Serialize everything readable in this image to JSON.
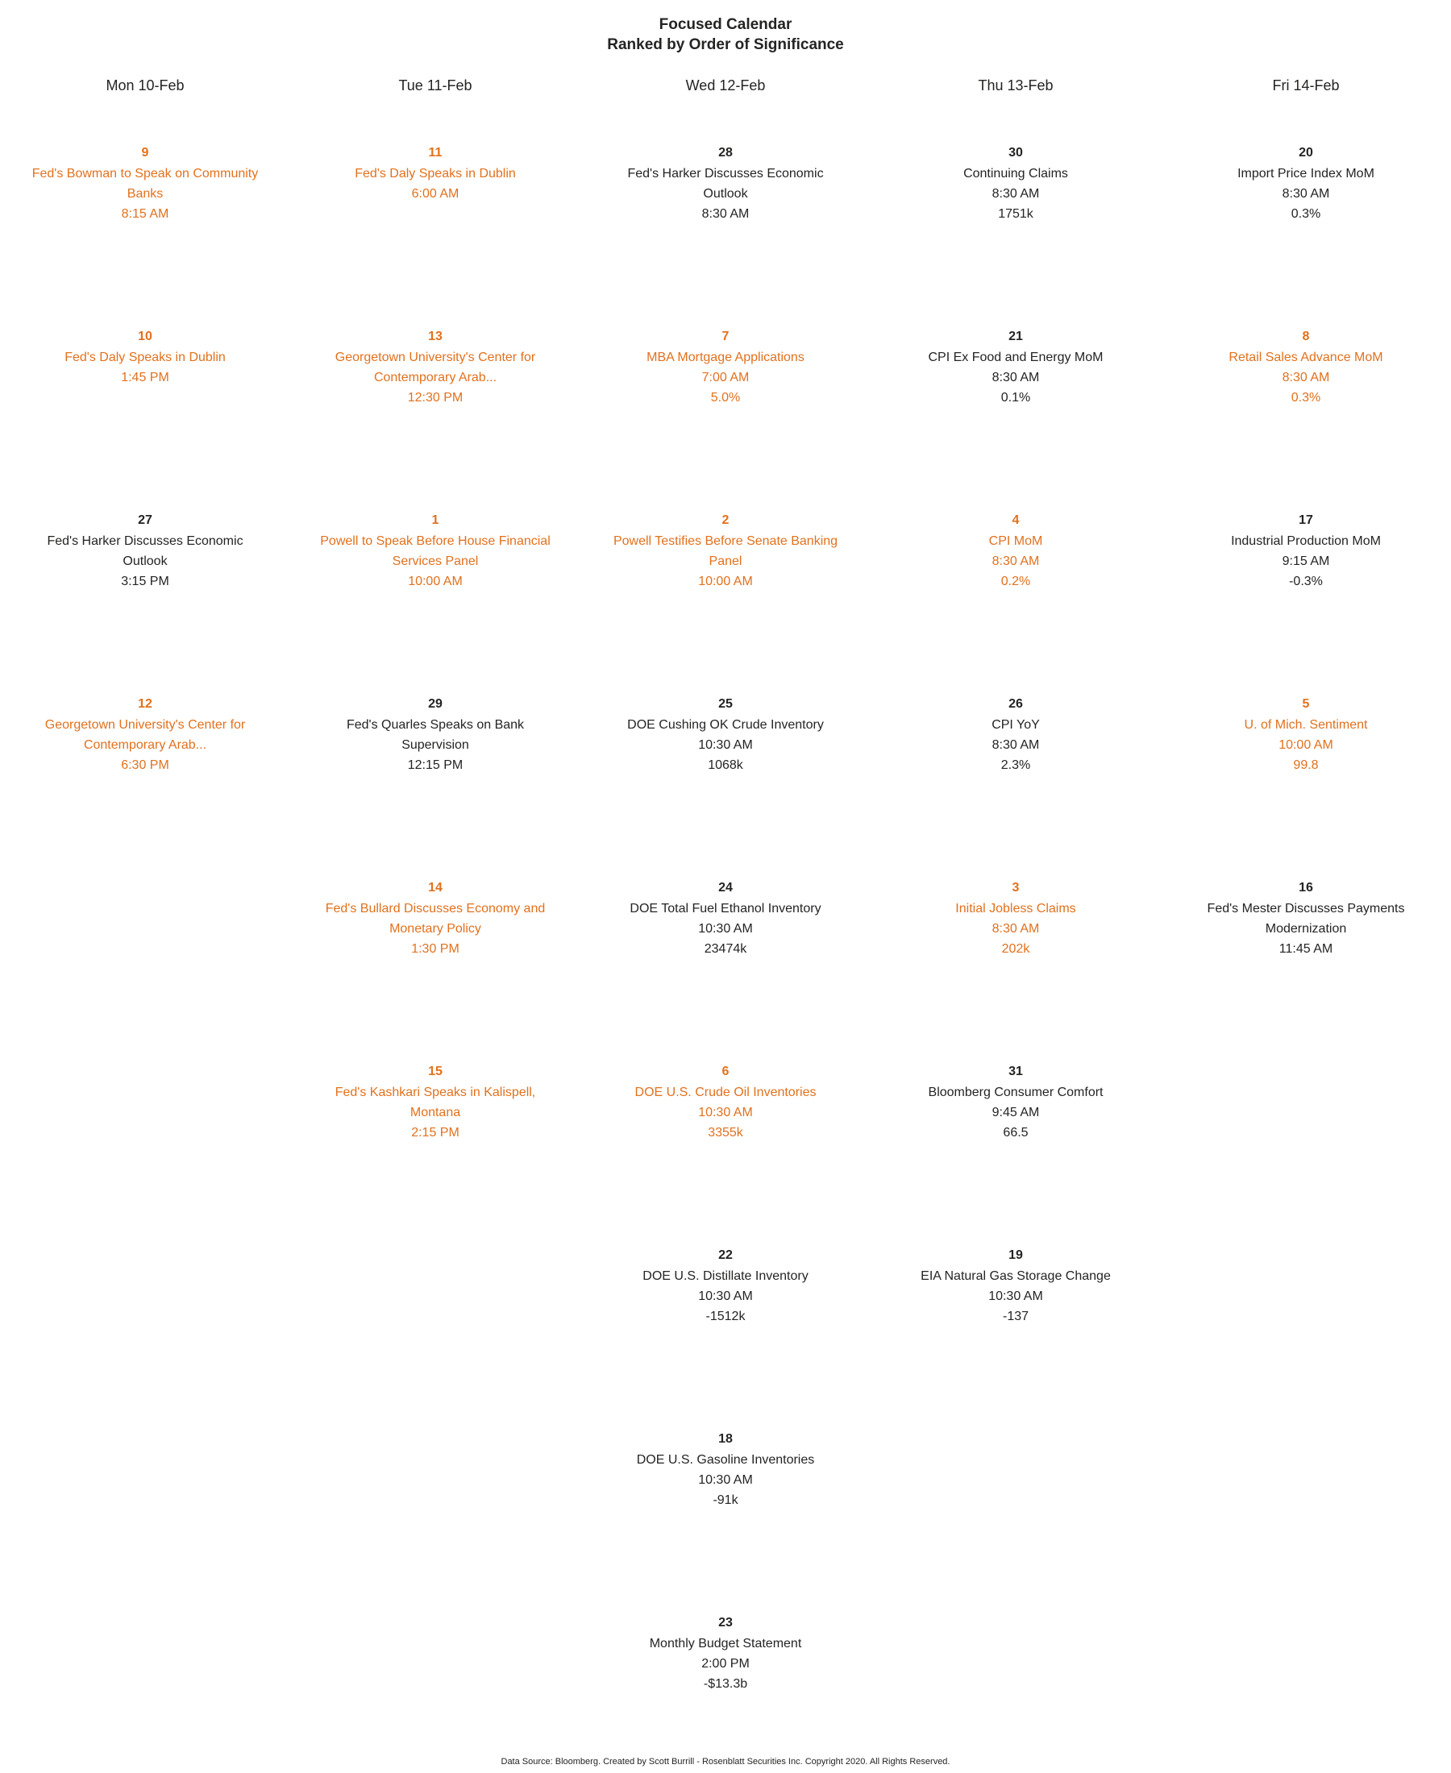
{
  "chart_data": {
    "type": "table",
    "title": "Focused Calendar",
    "subtitle": "Ranked by Order of Significance",
    "columns": [
      "Mon 10-Feb",
      "Tue 11-Feb",
      "Wed 12-Feb",
      "Thu 13-Feb",
      "Fri 14-Feb"
    ],
    "colors": {
      "highlight": "#E2711D",
      "normal": "#252423"
    },
    "rows": [
      [
        {
          "rank": 9,
          "title": "Fed's Bowman to Speak on Community Banks",
          "time": "8:15 AM",
          "highlighted": true
        },
        {
          "rank": 11,
          "title": "Fed's Daly Speaks in Dublin",
          "time": "6:00 AM",
          "highlighted": true
        },
        {
          "rank": 28,
          "title": "Fed's Harker Discusses Economic Outlook",
          "time": "8:30 AM",
          "highlighted": false
        },
        {
          "rank": 30,
          "title": "Continuing Claims",
          "time": "8:30 AM",
          "value": "1751k",
          "highlighted": false
        },
        {
          "rank": 20,
          "title": "Import Price Index MoM",
          "time": "8:30 AM",
          "value": "0.3%",
          "highlighted": false
        }
      ],
      [
        {
          "rank": 10,
          "title": "Fed's Daly Speaks in Dublin",
          "time": "1:45 PM",
          "highlighted": true
        },
        {
          "rank": 13,
          "title": "Georgetown University's Center for Contemporary Arab...",
          "time": "12:30 PM",
          "highlighted": true
        },
        {
          "rank": 7,
          "title": "MBA Mortgage Applications",
          "time": "7:00 AM",
          "value": "5.0%",
          "highlighted": true
        },
        {
          "rank": 21,
          "title": "CPI Ex Food and Energy MoM",
          "time": "8:30 AM",
          "value": "0.1%",
          "highlighted": false
        },
        {
          "rank": 8,
          "title": "Retail Sales Advance MoM",
          "time": "8:30 AM",
          "value": "0.3%",
          "highlighted": true
        }
      ],
      [
        {
          "rank": 27,
          "title": "Fed's Harker Discusses Economic Outlook",
          "time": "3:15 PM",
          "highlighted": false
        },
        {
          "rank": 1,
          "title": "Powell to Speak Before House Financial Services Panel",
          "time": "10:00 AM",
          "highlighted": true
        },
        {
          "rank": 2,
          "title": "Powell Testifies Before Senate Banking Panel",
          "time": "10:00 AM",
          "highlighted": true
        },
        {
          "rank": 4,
          "title": "CPI MoM",
          "time": "8:30 AM",
          "value": "0.2%",
          "highlighted": true
        },
        {
          "rank": 17,
          "title": "Industrial Production MoM",
          "time": "9:15 AM",
          "value": "-0.3%",
          "highlighted": false
        }
      ],
      [
        {
          "rank": 12,
          "title": "Georgetown University's Center for Contemporary Arab...",
          "time": "6:30 PM",
          "highlighted": true
        },
        {
          "rank": 29,
          "title": "Fed's Quarles Speaks on Bank Supervision",
          "time": "12:15 PM",
          "highlighted": false
        },
        {
          "rank": 25,
          "title": "DOE Cushing OK Crude Inventory",
          "time": "10:30 AM",
          "value": "1068k",
          "highlighted": false
        },
        {
          "rank": 26,
          "title": "CPI YoY",
          "time": "8:30 AM",
          "value": "2.3%",
          "highlighted": false
        },
        {
          "rank": 5,
          "title": "U. of Mich. Sentiment",
          "time": "10:00 AM",
          "value": "99.8",
          "highlighted": true
        }
      ],
      [
        null,
        {
          "rank": 14,
          "title": "Fed's Bullard Discusses Economy and Monetary Policy",
          "time": "1:30 PM",
          "highlighted": true
        },
        {
          "rank": 24,
          "title": "DOE Total Fuel Ethanol Inventory",
          "time": "10:30 AM",
          "value": "23474k",
          "highlighted": false
        },
        {
          "rank": 3,
          "title": "Initial Jobless Claims",
          "time": "8:30 AM",
          "value": "202k",
          "highlighted": true
        },
        {
          "rank": 16,
          "title": "Fed's Mester Discusses Payments Modernization",
          "time": "11:45 AM",
          "highlighted": false
        }
      ],
      [
        null,
        {
          "rank": 15,
          "title": "Fed's Kashkari Speaks in Kalispell, Montana",
          "time": "2:15 PM",
          "highlighted": true
        },
        {
          "rank": 6,
          "title": "DOE U.S. Crude Oil Inventories",
          "time": "10:30 AM",
          "value": "3355k",
          "highlighted": true
        },
        {
          "rank": 31,
          "title": "Bloomberg Consumer Comfort",
          "time": "9:45 AM",
          "value": "66.5",
          "highlighted": false
        },
        null
      ],
      [
        null,
        null,
        {
          "rank": 22,
          "title": "DOE U.S. Distillate Inventory",
          "time": "10:30 AM",
          "value": "-1512k",
          "highlighted": false
        },
        {
          "rank": 19,
          "title": "EIA Natural Gas Storage Change",
          "time": "10:30 AM",
          "value": "-137",
          "highlighted": false
        },
        null
      ],
      [
        null,
        null,
        {
          "rank": 18,
          "title": "DOE U.S. Gasoline Inventories",
          "time": "10:30 AM",
          "value": "-91k",
          "highlighted": false
        },
        null,
        null
      ],
      [
        null,
        null,
        {
          "rank": 23,
          "title": "Monthly Budget Statement",
          "time": "2:00 PM",
          "value": "-$13.3b",
          "highlighted": false
        },
        null,
        null
      ]
    ]
  },
  "footer": {
    "attribution": "Data Source: Bloomberg. Created by Scott Burrill - Rosenblatt Securities Inc. Copyright 2020. All Rights Reserved."
  }
}
